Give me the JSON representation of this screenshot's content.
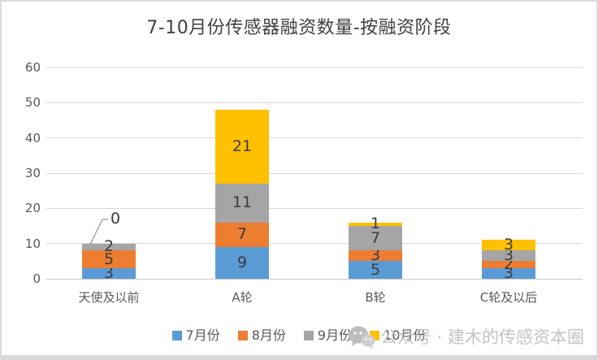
{
  "chart_data": {
    "type": "bar",
    "stacked": true,
    "title": "7-10月份传感器融资数量-按融资阶段",
    "categories": [
      "天使及以前",
      "A轮",
      "B轮",
      "C轮及以后"
    ],
    "series": [
      {
        "name": "7月份",
        "color": "#5B9BD5",
        "values": [
          3,
          9,
          5,
          3
        ]
      },
      {
        "name": "8月份",
        "color": "#ED7D31",
        "values": [
          5,
          7,
          3,
          2
        ]
      },
      {
        "name": "9月份",
        "color": "#A5A5A5",
        "values": [
          2,
          11,
          7,
          3
        ]
      },
      {
        "name": "10月份",
        "color": "#FFC000",
        "values": [
          0,
          21,
          1,
          3
        ]
      }
    ],
    "totals": [
      10,
      48,
      16,
      11
    ],
    "y_ticks": [
      0,
      10,
      20,
      30,
      40,
      50,
      60
    ],
    "ylim": [
      0,
      60
    ],
    "grid": true,
    "legend_position": "bottom",
    "data_labels": true,
    "zero_callout": {
      "category": "天使及以前",
      "series": "10月份",
      "label": "0"
    }
  },
  "watermark": {
    "icon": "wechat-icon",
    "text": "公众号 · 建木的传感资本圈"
  },
  "colors": {
    "gridline": "#D9D9D9",
    "axis_text": "#595959",
    "title_text": "#404040",
    "watermark_text": "#C4C4C4"
  }
}
